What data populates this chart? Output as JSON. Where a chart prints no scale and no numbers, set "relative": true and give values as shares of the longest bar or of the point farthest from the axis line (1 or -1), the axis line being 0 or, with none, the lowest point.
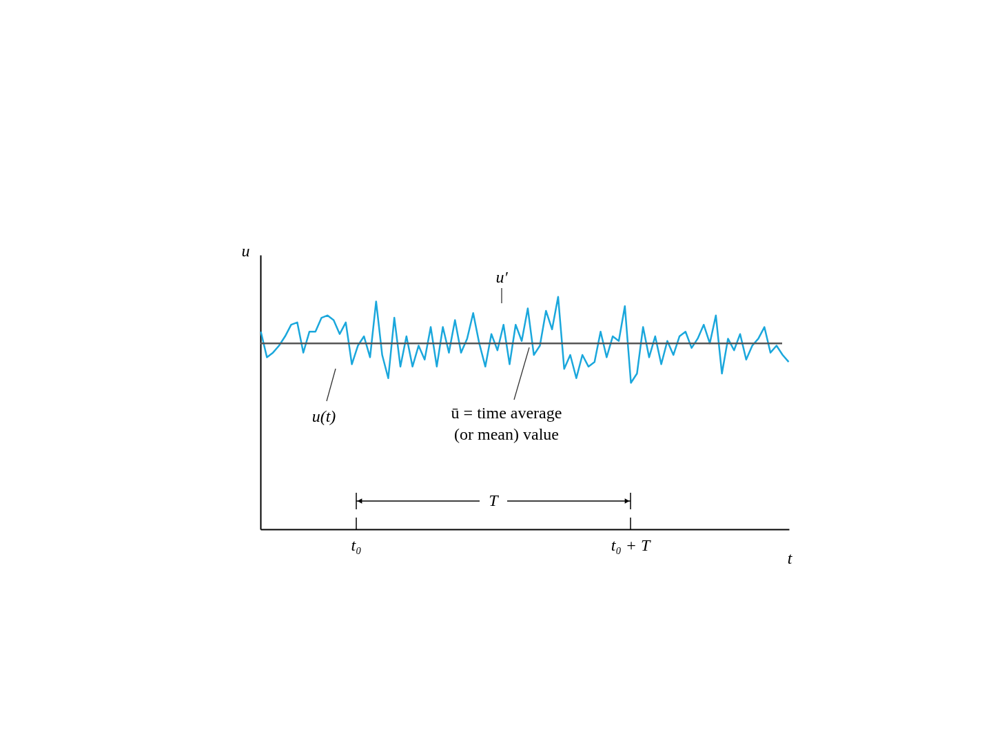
{
  "chart_data": {
    "type": "line",
    "relative": true,
    "xlabel": "t",
    "ylabel": "u",
    "color": "#1aa7dc",
    "grid": false,
    "marker": "none",
    "line_style": "solid",
    "categories": [
      null,
      null,
      null,
      null,
      null,
      null,
      null,
      null,
      null,
      null,
      null,
      null,
      null,
      null,
      null,
      null,
      null,
      null,
      null,
      null,
      null,
      null,
      null,
      null,
      null,
      null,
      null,
      null,
      null,
      null,
      null,
      null,
      null,
      null,
      null,
      null,
      null,
      null,
      null,
      null,
      null,
      null,
      null,
      null,
      null,
      null,
      null,
      null,
      null,
      null,
      null,
      null,
      null,
      null,
      null,
      null,
      null,
      null,
      null,
      null,
      null,
      null,
      null,
      null,
      null,
      null,
      null,
      null,
      null,
      null,
      null,
      null,
      null,
      null,
      null,
      null,
      null,
      null,
      null,
      null,
      null,
      null,
      null,
      null,
      null,
      null,
      null,
      null
    ],
    "values": [
      0.85,
      0.74,
      0.76,
      0.79,
      0.83,
      0.88,
      0.89,
      0.76,
      0.85,
      0.85,
      0.91,
      0.92,
      0.9,
      0.84,
      0.89,
      0.71,
      0.79,
      0.83,
      0.74,
      0.98,
      0.75,
      0.65,
      0.91,
      0.7,
      0.83,
      0.7,
      0.79,
      0.73,
      0.87,
      0.7,
      0.87,
      0.76,
      0.9,
      0.76,
      0.82,
      0.93,
      0.8,
      0.7,
      0.84,
      0.77,
      0.88,
      0.71,
      0.88,
      0.81,
      0.95,
      0.75,
      0.79,
      0.94,
      0.86,
      1.0,
      0.69,
      0.75,
      0.65,
      0.75,
      0.7,
      0.72,
      0.85,
      0.74,
      0.83,
      0.81,
      0.96,
      0.63,
      0.67,
      0.87,
      0.74,
      0.83,
      0.71,
      0.81,
      0.75,
      0.83,
      0.85,
      0.78,
      0.82,
      0.88,
      0.8,
      0.92,
      0.67,
      0.82,
      0.77,
      0.84,
      0.73,
      0.79,
      0.82,
      0.87,
      0.76,
      0.79,
      0.75,
      0.72
    ],
    "ref_lines": [
      {
        "axis": "y",
        "value": 0.8,
        "label": "ū = time average (or mean) value",
        "color": "#555555"
      }
    ],
    "annotations": [
      "u′",
      "u(t)",
      "t₀",
      "t₀ + T",
      "T"
    ]
  }
}
